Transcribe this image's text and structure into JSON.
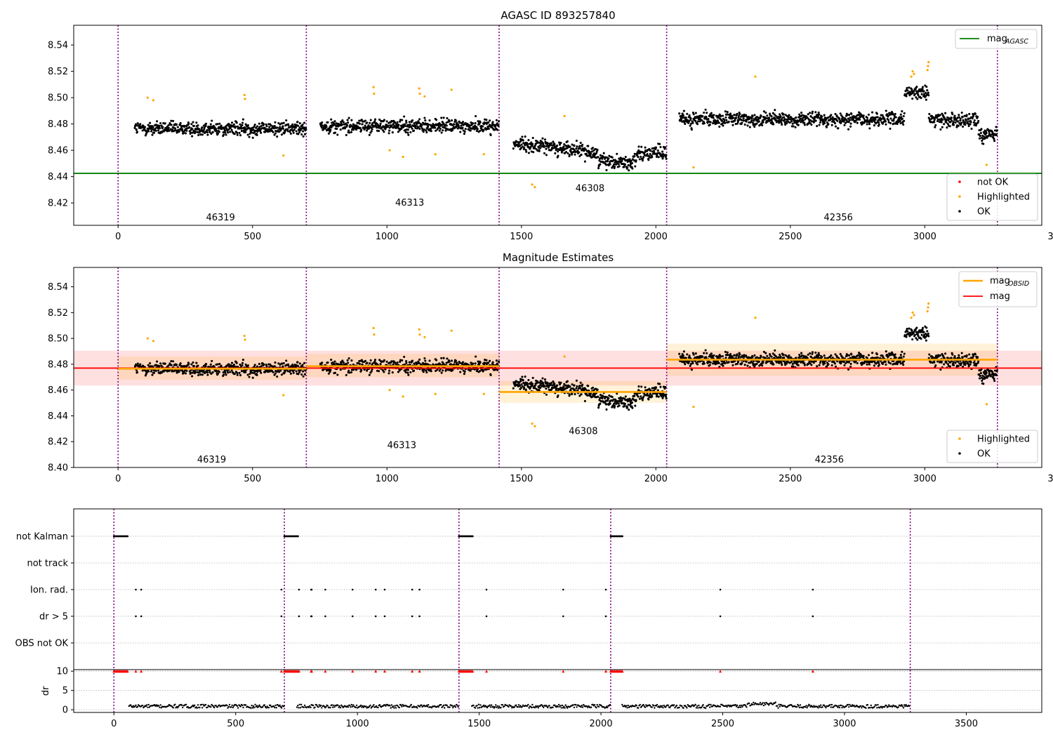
{
  "chart_data": [
    {
      "type": "scatter",
      "title": "AGASC ID 893257840",
      "xlim": [
        -165,
        3435
      ],
      "ylim": [
        8.403,
        8.555
      ],
      "xticks": [
        0,
        500,
        1000,
        1500,
        2000,
        2500,
        3000,
        3500
      ],
      "yticks": [
        8.42,
        8.44,
        8.46,
        8.48,
        8.5,
        8.52,
        8.54
      ],
      "grid": false,
      "observation_boundaries": [
        0,
        700,
        1417,
        2040,
        3270
      ],
      "observations": [
        {
          "obsid": "46319",
          "x_range": [
            62,
            700
          ],
          "mean_mag": 8.4765,
          "label_y": 8.409
        },
        {
          "obsid": "46313",
          "x_range": [
            752,
            1417
          ],
          "mean_mag": 8.4785,
          "label_y": 8.42
        },
        {
          "obsid": "46308",
          "x_range": [
            1470,
            2040
          ],
          "mean_mag": 8.4585,
          "label_y": 8.431
        },
        {
          "obsid": "42356",
          "x_range": [
            2087,
            3270
          ],
          "mean_mag": 8.4835,
          "label_y": 8.409
        }
      ],
      "reference_line": {
        "name": "mag_AGASC",
        "y": 8.4425,
        "x_range": [
          -165,
          3435
        ],
        "color": "#008000"
      },
      "highlighted_points": [
        [
          110,
          8.5
        ],
        [
          131,
          8.498
        ],
        [
          470,
          8.502
        ],
        [
          472,
          8.499
        ],
        [
          615,
          8.456
        ],
        [
          950,
          8.508
        ],
        [
          952,
          8.503
        ],
        [
          1010,
          8.46
        ],
        [
          1060,
          8.455
        ],
        [
          1120,
          8.507
        ],
        [
          1122,
          8.503
        ],
        [
          1140,
          8.501
        ],
        [
          1180,
          8.457
        ],
        [
          1240,
          8.506
        ],
        [
          1360,
          8.457
        ],
        [
          1540,
          8.434
        ],
        [
          1550,
          8.432
        ],
        [
          1660,
          8.486
        ],
        [
          2140,
          8.447
        ],
        [
          2370,
          8.516
        ],
        [
          2950,
          8.516
        ],
        [
          2955,
          8.52
        ],
        [
          2960,
          8.518
        ],
        [
          3010,
          8.521
        ],
        [
          3012,
          8.524
        ],
        [
          3014,
          8.527
        ],
        [
          3230,
          8.449
        ]
      ],
      "legends": [
        {
          "placement": "upper-right",
          "entries": [
            {
              "name": "mag",
              "sub": "AGASC",
              "color": "#008000"
            }
          ]
        },
        {
          "placement": "lower-right",
          "entries": [
            {
              "name": "not OK",
              "color": "#ff0000"
            },
            {
              "name": "Highlighted",
              "color": "#ffa500"
            },
            {
              "name": "OK",
              "color": "#000000"
            }
          ]
        }
      ]
    },
    {
      "type": "scatter",
      "title": "Magnitude Estimates",
      "xlim": [
        -165,
        3435
      ],
      "ylim": [
        8.4,
        8.555
      ],
      "xticks": [
        0,
        500,
        1000,
        1500,
        2000,
        2500,
        3000,
        3500
      ],
      "yticks": [
        8.4,
        8.42,
        8.44,
        8.46,
        8.48,
        8.5,
        8.52,
        8.54
      ],
      "grid": false,
      "mag": {
        "name": "mag",
        "value": 8.477,
        "band": [
          8.4635,
          8.4905
        ],
        "x_range": [
          -165,
          3435
        ],
        "color": "#ff0000"
      },
      "mag_obsid": [
        {
          "x_range": [
            0,
            700
          ],
          "value": 8.4765,
          "band": [
            8.468,
            8.486
          ]
        },
        {
          "x_range": [
            700,
            1417
          ],
          "value": 8.4785,
          "band": [
            8.47,
            8.488
          ]
        },
        {
          "x_range": [
            1417,
            2040
          ],
          "value": 8.4585,
          "band": [
            8.45,
            8.467
          ]
        },
        {
          "x_range": [
            2040,
            3270
          ],
          "value": 8.4835,
          "band": [
            8.471,
            8.496
          ]
        }
      ],
      "obsid_labels": [
        {
          "obsid": "46319",
          "x": 348,
          "y": 8.406
        },
        {
          "obsid": "46313",
          "x": 1055,
          "y": 8.417
        },
        {
          "obsid": "46308",
          "x": 1730,
          "y": 8.428
        },
        {
          "obsid": "42356",
          "x": 2645,
          "y": 8.406
        }
      ],
      "legends": [
        {
          "placement": "upper-right",
          "entries": [
            {
              "name": "mag",
              "sub": "OBSID",
              "color": "#ffa500"
            },
            {
              "name": "mag",
              "sub": "",
              "color": "#ff0000"
            }
          ]
        },
        {
          "placement": "lower-right",
          "entries": [
            {
              "name": "Highlighted",
              "color": "#ffa500"
            },
            {
              "name": "OK",
              "color": "#000000"
            }
          ]
        }
      ]
    },
    {
      "type": "scatter",
      "title": "",
      "xlim": [
        -165,
        3810
      ],
      "xticks": [
        0,
        500,
        1000,
        1500,
        2000,
        2500,
        3000,
        3500
      ],
      "flag_labels": [
        "not Kalman",
        "not track",
        "Ion. rad.",
        "dr > 5",
        "OBS not OK"
      ],
      "not_kalman_ranges": [
        [
          0,
          58
        ],
        [
          700,
          758
        ],
        [
          1417,
          1475
        ],
        [
          2040,
          2088
        ]
      ],
      "ion_rad_x": [
        90,
        112,
        688,
        760,
        810,
        812,
        868,
        980,
        1075,
        1112,
        1225,
        1255,
        1530,
        1845,
        2020,
        2490,
        2870
      ],
      "dr_gt5_x": [
        90,
        112,
        688,
        760,
        810,
        812,
        868,
        980,
        1075,
        1112,
        1225,
        1255,
        1530,
        1845,
        2020,
        2490,
        2870
      ],
      "dr": {
        "ylabel": "dr",
        "yticks": [
          0,
          5,
          10
        ],
        "ylim": [
          -0.7,
          10.4
        ],
        "clip_value": 10,
        "clip_color": "#ff0000"
      }
    }
  ]
}
